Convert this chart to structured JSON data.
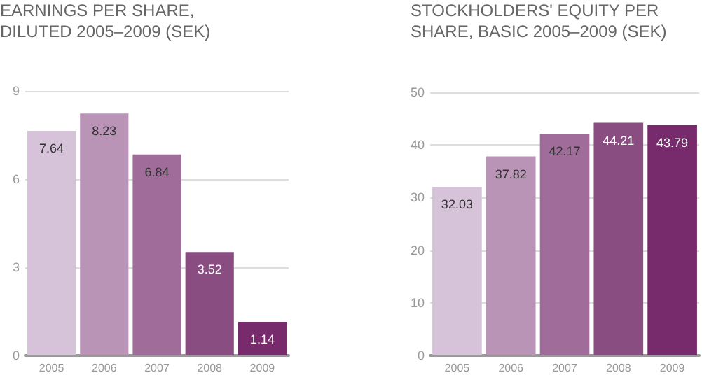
{
  "chart_data": [
    {
      "type": "bar",
      "title": "EARNINGS PER SHARE, DILUTED 2005–2009 (SEK)",
      "categories": [
        "2005",
        "2006",
        "2007",
        "2008",
        "2009"
      ],
      "values": [
        7.64,
        8.23,
        6.84,
        3.52,
        1.14
      ],
      "colors": [
        "#d7c3d9",
        "#b994b6",
        "#a06d9a",
        "#894d82",
        "#772a6c"
      ],
      "ylim": [
        0,
        9
      ],
      "yticks": [
        0,
        3,
        6,
        9
      ],
      "grid": "y",
      "data_labels": true
    },
    {
      "type": "bar",
      "title": "STOCKHOLDERS' EQUITY PER SHARE, BASIC 2005–2009 (SEK)",
      "categories": [
        "2005",
        "2006",
        "2007",
        "2008",
        "2009"
      ],
      "values": [
        32.03,
        37.82,
        42.17,
        44.21,
        43.79
      ],
      "colors": [
        "#d7c3d9",
        "#b994b6",
        "#a06d9a",
        "#894d82",
        "#772a6c"
      ],
      "ylim": [
        0,
        50
      ],
      "yticks": [
        0,
        10,
        20,
        30,
        40,
        50
      ],
      "grid": "y",
      "data_labels": true
    }
  ]
}
